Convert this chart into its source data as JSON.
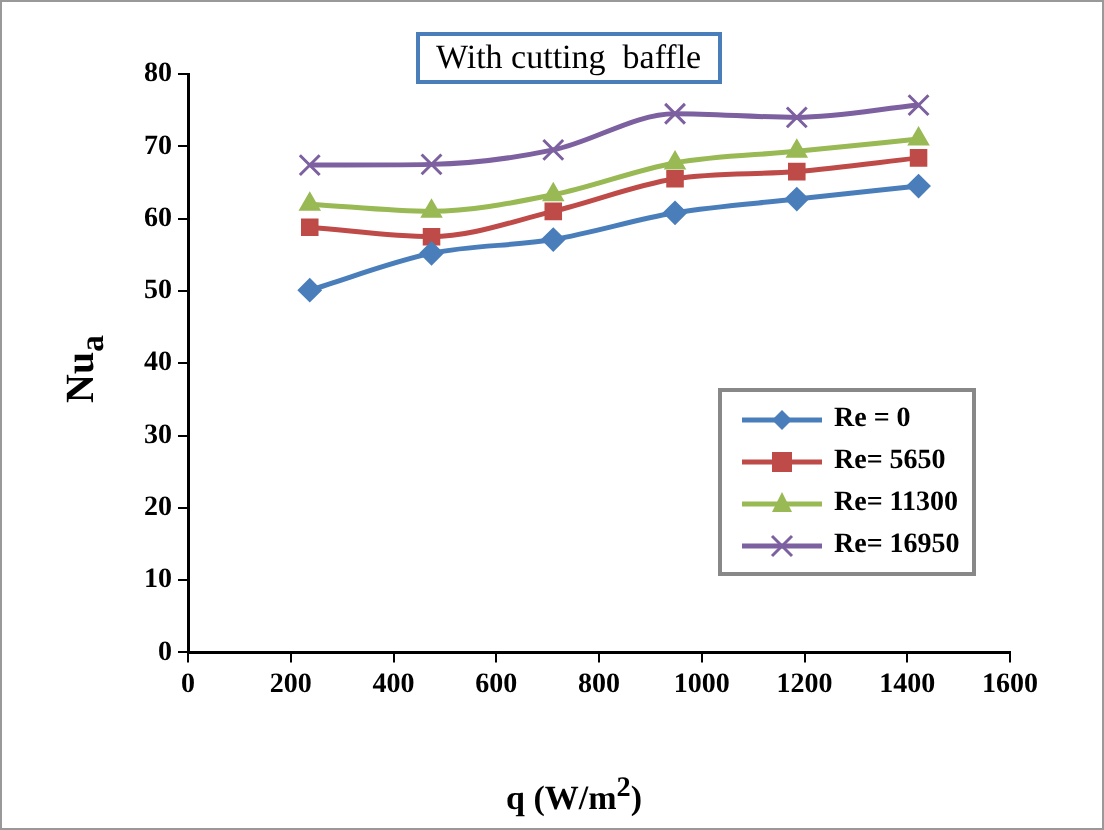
{
  "chart_data": {
    "type": "line",
    "title": "With cutting  baffle",
    "xlabel": "q   (W/m$^{2}$)",
    "ylabel": "Nu$_{a}$",
    "x": [
      237,
      474,
      711,
      948,
      1185,
      1422
    ],
    "series": [
      {
        "name": "Re = 0",
        "color": "#4a7ebb",
        "marker": "diamond",
        "values": [
          50.1,
          55.2,
          57.1,
          60.8,
          62.7,
          64.5
        ]
      },
      {
        "name": "Re= 5650",
        "color": "#be4b48",
        "marker": "square",
        "values": [
          58.8,
          57.5,
          61,
          65.5,
          66.5,
          68.4
        ]
      },
      {
        "name": "Re= 11300",
        "color": "#98b954",
        "marker": "triangle",
        "values": [
          62,
          61,
          63.3,
          67.7,
          69.3,
          71
        ]
      },
      {
        "name": "Re= 16950",
        "color": "#7d60a0",
        "marker": "cross",
        "values": [
          67.4,
          67.5,
          69.5,
          74.5,
          74,
          75.7
        ]
      }
    ],
    "xlim": [
      0,
      1600
    ],
    "xticks": [
      0,
      200,
      400,
      600,
      800,
      1000,
      1200,
      1400,
      1600
    ],
    "ylim": [
      0,
      80
    ],
    "yticks": [
      0,
      10,
      20,
      30,
      40,
      50,
      60,
      70,
      80
    ],
    "grid": false,
    "legend": "right",
    "line_style": "solid"
  }
}
